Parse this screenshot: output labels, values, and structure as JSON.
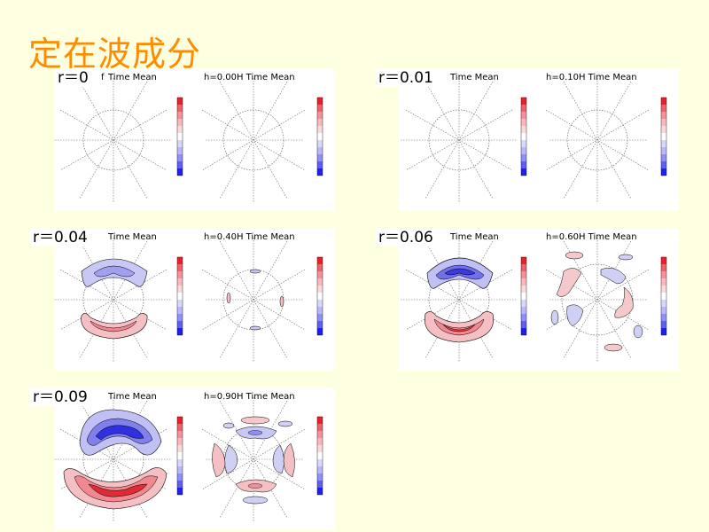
{
  "title": "定在波成分",
  "panels": [
    {
      "r_label": "r＝0",
      "left_title": "Time Mean",
      "right_title": "h=0.00H Time Mean",
      "left_prefix": "f"
    },
    {
      "r_label": "r＝0.01",
      "left_title": "Time Mean",
      "right_title": "h=0.10H Time Mean"
    },
    {
      "r_label": "r＝0.04",
      "left_title": "Time Mean",
      "right_title": "h=0.40H Time Mean"
    },
    {
      "r_label": "r＝0.06",
      "left_title": "Time Mean",
      "right_title": "h=0.60H Time Mean"
    },
    {
      "r_label": "r＝0.09",
      "left_title": "Time Mean",
      "right_title": "h=0.90H Time Mean"
    }
  ],
  "colors": {
    "positive": "#e8404a",
    "negative": "#3a3ae0",
    "title": "#ff8c00"
  }
}
